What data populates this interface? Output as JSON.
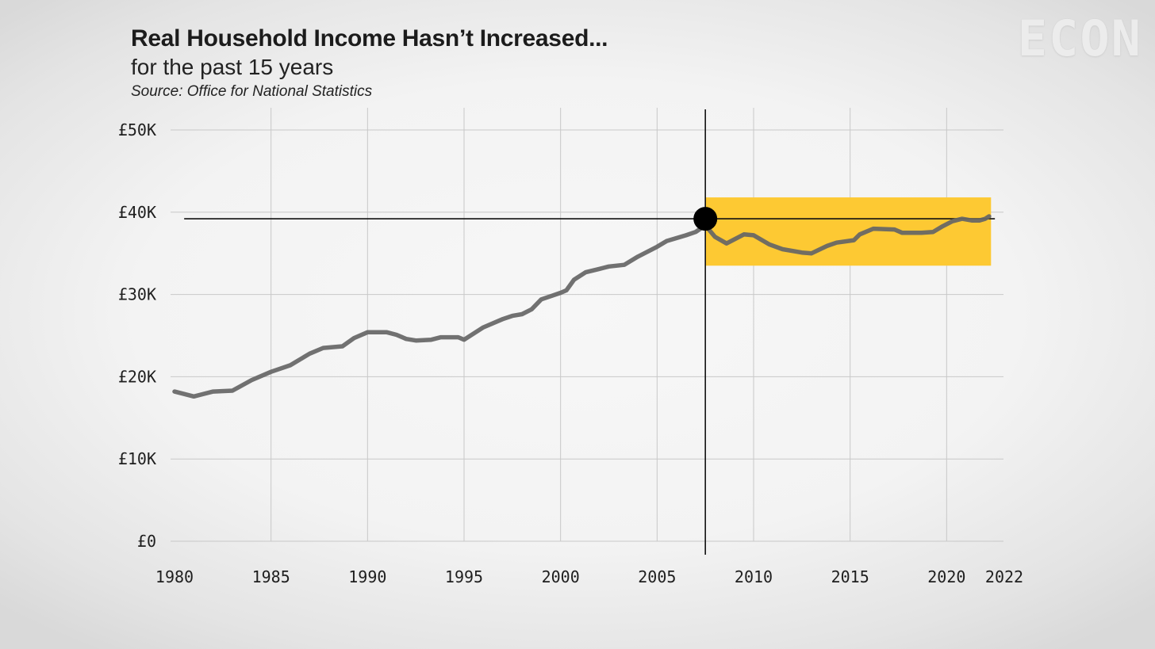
{
  "header": {
    "title": "Real Household Income Hasn’t Increased...",
    "subtitle": "for the past 15 years",
    "source": "Source: Office for National Statistics"
  },
  "logo": "ECON",
  "colors": {
    "line": "#666666",
    "highlight": "#fdc933",
    "marker": "#000000",
    "grid": "#c8c8c8"
  },
  "chart_data": {
    "type": "line",
    "title": "Real Household Income Hasn’t Increased...",
    "subtitle": "for the past 15 years",
    "xlabel": "",
    "ylabel": "",
    "xlim": [
      1980,
      2022
    ],
    "ylim": [
      0,
      50000
    ],
    "x_ticks": [
      1980,
      1985,
      1990,
      1995,
      2000,
      2005,
      2010,
      2015,
      2020,
      2022
    ],
    "y_ticks": [
      {
        "value": 0,
        "label": "£0"
      },
      {
        "value": 10000,
        "label": "£10K"
      },
      {
        "value": 20000,
        "label": "£20K"
      },
      {
        "value": 30000,
        "label": "£30K"
      },
      {
        "value": 40000,
        "label": "£40K"
      },
      {
        "value": 50000,
        "label": "£50K"
      }
    ],
    "grid": true,
    "legend": "none",
    "series": [
      {
        "points": [
          [
            1980,
            18200
          ],
          [
            1981,
            17600
          ],
          [
            1982,
            18200
          ],
          [
            1983,
            18300
          ],
          [
            1984,
            19600
          ],
          [
            1985,
            20600
          ],
          [
            1986,
            21400
          ],
          [
            1987,
            22800
          ],
          [
            1987.7,
            23500
          ],
          [
            1988.7,
            23700
          ],
          [
            1989.3,
            24700
          ],
          [
            1990,
            25400
          ],
          [
            1991,
            25400
          ],
          [
            1991.5,
            25100
          ],
          [
            1992,
            24600
          ],
          [
            1992.5,
            24400
          ],
          [
            1993.3,
            24500
          ],
          [
            1993.8,
            24800
          ],
          [
            1994.7,
            24800
          ],
          [
            1995,
            24500
          ],
          [
            1996,
            26000
          ],
          [
            1997,
            27000
          ],
          [
            1997.5,
            27400
          ],
          [
            1998,
            27600
          ],
          [
            1998.5,
            28200
          ],
          [
            1999,
            29400
          ],
          [
            1999.5,
            29800
          ],
          [
            2000,
            30200
          ],
          [
            2000.3,
            30500
          ],
          [
            2000.7,
            31800
          ],
          [
            2001.3,
            32700
          ],
          [
            2002,
            33100
          ],
          [
            2002.5,
            33400
          ],
          [
            2003.3,
            33600
          ],
          [
            2004,
            34600
          ],
          [
            2005,
            35800
          ],
          [
            2005.5,
            36500
          ],
          [
            2006.5,
            37200
          ],
          [
            2007,
            37600
          ],
          [
            2007.5,
            38400
          ],
          [
            2008,
            37000
          ],
          [
            2008.6,
            36200
          ],
          [
            2009.5,
            37300
          ],
          [
            2010,
            37200
          ],
          [
            2010.8,
            36100
          ],
          [
            2011.5,
            35500
          ],
          [
            2012.5,
            35100
          ],
          [
            2013,
            35000
          ],
          [
            2013.8,
            35900
          ],
          [
            2014.3,
            36300
          ],
          [
            2015.2,
            36600
          ],
          [
            2015.5,
            37300
          ],
          [
            2016.2,
            38000
          ],
          [
            2017.3,
            37900
          ],
          [
            2017.7,
            37500
          ],
          [
            2018.7,
            37500
          ],
          [
            2019.3,
            37600
          ],
          [
            2019.8,
            38300
          ],
          [
            2020.3,
            38900
          ],
          [
            2020.8,
            39200
          ],
          [
            2021.3,
            39000
          ],
          [
            2021.7,
            39000
          ],
          [
            2022,
            39200
          ],
          [
            2022.2,
            39500
          ]
        ]
      }
    ],
    "annotations": {
      "reference_year": 2007.5,
      "reference_value": 39200,
      "highlight_x": [
        2007.5,
        2022.3
      ],
      "highlight_y": [
        33500,
        41800
      ],
      "hline_from_year": 1980.5,
      "hline_to_year": 2022.5
    }
  }
}
